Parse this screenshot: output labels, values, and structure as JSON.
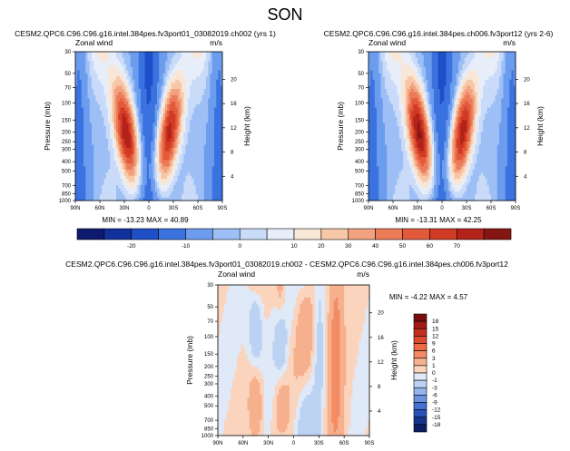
{
  "page_title": "SON",
  "chart_data": [
    {
      "type": "heatmap",
      "title": "CESM2.QPC6.C96.C96.g16.intel.384pes.fv3port01_03082019.ch002 (yrs 1)",
      "left_label": "Zonal wind",
      "right_label": "m/s",
      "xlabel": "",
      "ylabel": "Pressure (mb)",
      "y2label": "Height (km)",
      "x_ticks": [
        "90N",
        "60N",
        "30N",
        "0",
        "30S",
        "60S",
        "90S"
      ],
      "y_ticks": [
        "30",
        "50",
        "70",
        "100",
        "150",
        "200",
        "250",
        "300",
        "400",
        "500",
        "700",
        "850",
        "1000"
      ],
      "y2_ticks": [
        "20",
        "16",
        "12",
        "8",
        "4"
      ],
      "stats": "MIN = -13.23  MAX = 40.89",
      "min": -13.23,
      "max": 40.89,
      "jets": [
        {
          "lat": -25,
          "peak": 38
        },
        {
          "lat": 28,
          "peak": 40.9
        }
      ]
    },
    {
      "type": "heatmap",
      "title": "CESM2.QPC6.C96.C96.g16.intel.384pes.ch006.fv3port12 (yrs 2-6)",
      "left_label": "Zonal wind",
      "right_label": "m/s",
      "xlabel": "",
      "ylabel": "Pressure (mb)",
      "y2label": "Height (km)",
      "x_ticks": [
        "90N",
        "60N",
        "30N",
        "0",
        "30S",
        "60S",
        "90S"
      ],
      "y_ticks": [
        "30",
        "50",
        "70",
        "100",
        "150",
        "200",
        "250",
        "300",
        "400",
        "500",
        "700",
        "850",
        "1000"
      ],
      "y2_ticks": [
        "20",
        "16",
        "12",
        "8",
        "4"
      ],
      "stats": "MIN = -13.31  MAX = 42.25",
      "min": -13.31,
      "max": 42.25,
      "jets": [
        {
          "lat": -25,
          "peak": 39
        },
        {
          "lat": 28,
          "peak": 42.25
        }
      ]
    },
    {
      "type": "heatmap",
      "title": "CESM2.QPC6.C96.C96.g16.intel.384pes.fv3port01_03082019.ch002 - CESM2.QPC6.C96.C96.g16.intel.384pes.ch006.fv3port12",
      "left_label": "Zonal wind",
      "right_label": "m/s",
      "xlabel": "",
      "ylabel": "Pressure (mb)",
      "y2label": "Height (km)",
      "x_ticks": [
        "90N",
        "60N",
        "30N",
        "0",
        "30S",
        "60S",
        "90S"
      ],
      "y_ticks": [
        "30",
        "50",
        "70",
        "100",
        "150",
        "200",
        "250",
        "300",
        "400",
        "500",
        "700",
        "850",
        "1000"
      ],
      "y2_ticks": [
        "20",
        "16",
        "12",
        "8",
        "4"
      ],
      "stats": "MIN = -4.22  MAX = 4.57",
      "min": -4.22,
      "max": 4.57
    }
  ],
  "colorbar_top": {
    "labels": [
      "-20",
      "-10",
      "0",
      "10",
      "20",
      "30",
      "40",
      "50",
      "60",
      "70"
    ],
    "colors": [
      "#0d1a6e",
      "#12319c",
      "#1f4fc7",
      "#3a73e0",
      "#6c9cee",
      "#9dbff5",
      "#c9dbf8",
      "#e7eefa",
      "#f8e6d6",
      "#f6c8a8",
      "#f2a27f",
      "#ec7b58",
      "#e35a3b",
      "#d13b25",
      "#b3231a",
      "#861410"
    ]
  },
  "colorbar_diff": {
    "labels": [
      "18",
      "15",
      "12",
      "9",
      "6",
      "3",
      "1",
      "0",
      "-1",
      "-3",
      "-6",
      "-9",
      "-12",
      "-15",
      "-18"
    ],
    "colors": [
      "#7a0e0e",
      "#a11b16",
      "#c52f22",
      "#de4a2f",
      "#ec6a45",
      "#f38c64",
      "#f7b08e",
      "#fad4bd",
      "#dfe9f7",
      "#bcd2f3",
      "#93b4ec",
      "#6a92e2",
      "#4570d4",
      "#2950b8",
      "#17348f",
      "#0b1e63"
    ]
  }
}
